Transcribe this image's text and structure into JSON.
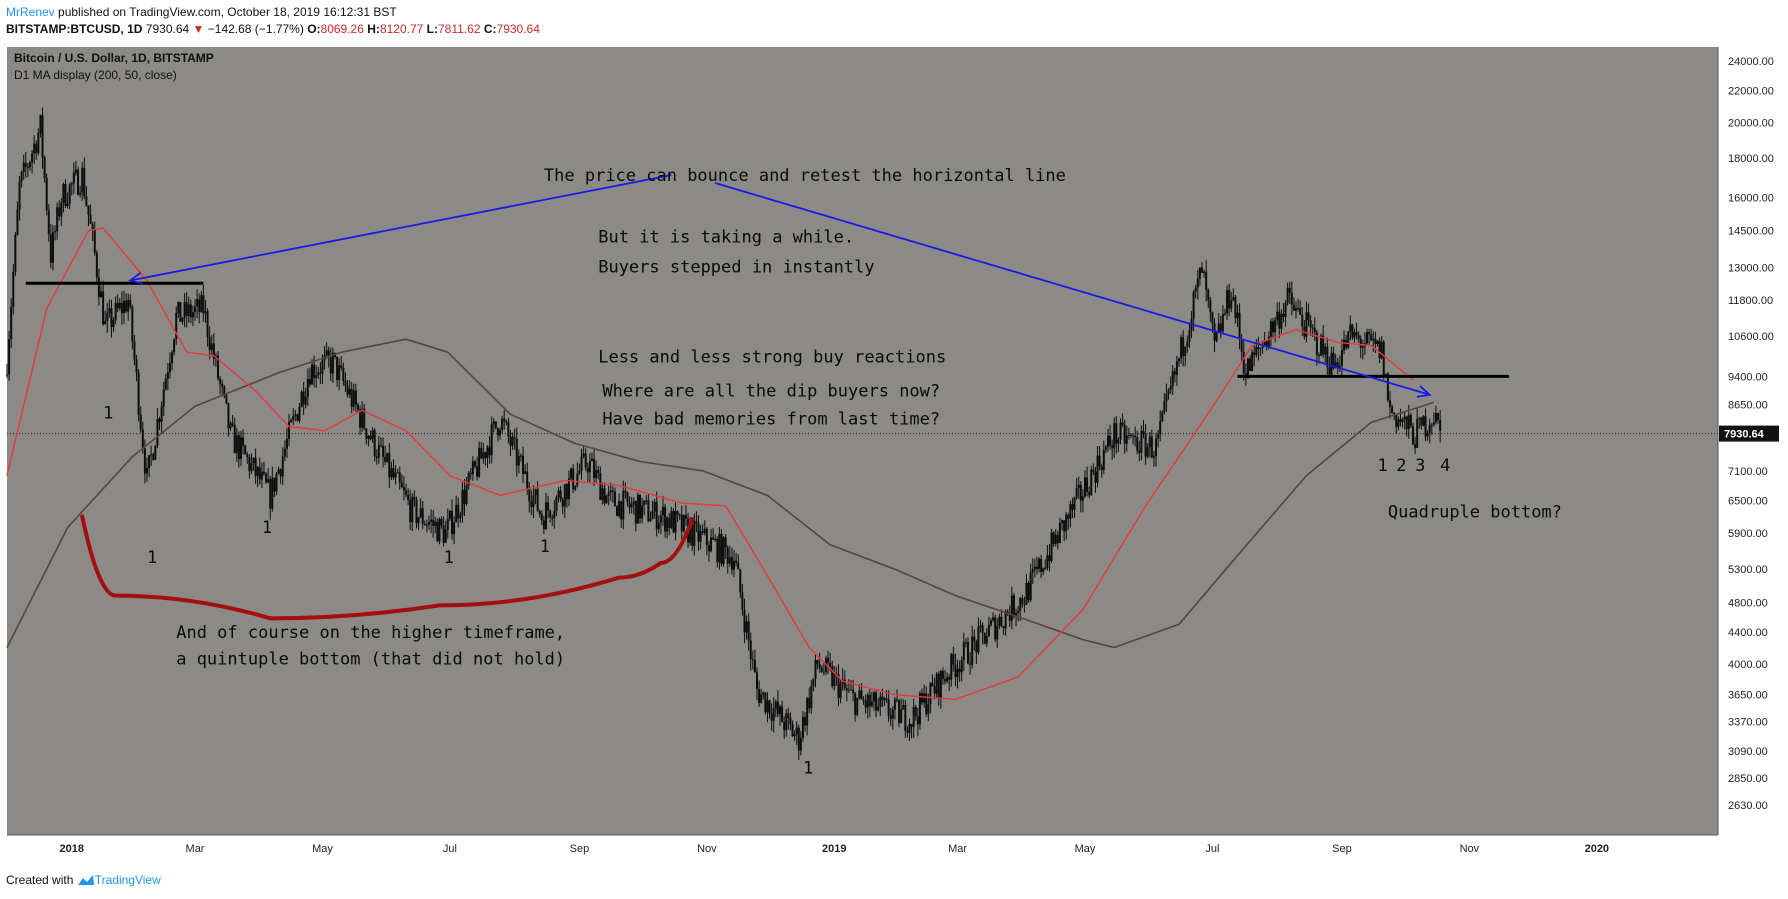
{
  "header": {
    "author": "MrRenev",
    "published": "published on TradingView.com, October 18, 2019 16:12:31 BST",
    "symbol": "BITSTAMP:BTCUSD, 1D",
    "last": "7930.64",
    "change_arrow": "▼",
    "change": "−142.68 (−1.77%)",
    "o_label": "O:",
    "o": "8069.26",
    "h_label": "H:",
    "h": "8120.77",
    "l_label": "L:",
    "l": "7811.62",
    "c_label": "C:",
    "c": "7930.64"
  },
  "legend": {
    "title": "Bitcoin / U.S. Dollar, 1D, BITSTAMP",
    "indicator": "D1 MA display (200, 50, close)"
  },
  "footer": {
    "created_with": "Created with",
    "brand": "TradingView"
  },
  "colors": {
    "plot_bg": "#8c8a87",
    "ma50": "#e8383a",
    "ma200": "#5a4636",
    "candles": "#0d0d0d",
    "blue_lines": "#1a1ae6",
    "curve": "#a40f0f",
    "price_tag": "#111111"
  },
  "chart_data": {
    "type": "line",
    "title": "Bitcoin / U.S. Dollar, 1D, BITSTAMP",
    "scale": "log",
    "ylim": [
      2630,
      24000
    ],
    "y_ticks": [
      "24000.00",
      "22000.00",
      "20000.00",
      "18000.00",
      "16000.00",
      "14500.00",
      "13000.00",
      "11800.00",
      "10600.00",
      "9400.00",
      "8650.00",
      "7930.64",
      "7100.00",
      "6500.00",
      "5900.00",
      "5300.00",
      "4800.00",
      "4400.00",
      "4000.00",
      "3650.00",
      "3370.00",
      "3090.00",
      "2850.00",
      "2630.00"
    ],
    "x_ticks": [
      "2018",
      "Mar",
      "May",
      "Jul",
      "Sep",
      "Nov",
      "2019",
      "Mar",
      "May",
      "Jul",
      "Sep",
      "Nov",
      "2020"
    ],
    "xlim": [
      "2017-12-01",
      "2020-02-28"
    ],
    "current_price": "7930.64",
    "series": [
      {
        "name": "BTCUSD",
        "points": [
          [
            "2017-12-01",
            9900
          ],
          [
            "2017-12-07",
            16500
          ],
          [
            "2017-12-17",
            19700
          ],
          [
            "2017-12-22",
            13500
          ],
          [
            "2017-12-27",
            16000
          ],
          [
            "2018-01-06",
            17100
          ],
          [
            "2018-01-12",
            13500
          ],
          [
            "2018-01-17",
            10900
          ],
          [
            "2018-01-28",
            11800
          ],
          [
            "2018-02-06",
            6900
          ],
          [
            "2018-02-20",
            11200
          ],
          [
            "2018-03-05",
            11500
          ],
          [
            "2018-03-18",
            7900
          ],
          [
            "2018-04-06",
            6600
          ],
          [
            "2018-04-25",
            9600
          ],
          [
            "2018-05-06",
            9800
          ],
          [
            "2018-05-29",
            7400
          ],
          [
            "2018-06-13",
            6300
          ],
          [
            "2018-06-29",
            5900
          ],
          [
            "2018-07-25",
            8300
          ],
          [
            "2018-08-14",
            6200
          ],
          [
            "2018-09-05",
            7300
          ],
          [
            "2018-09-15",
            6500
          ],
          [
            "2018-10-11",
            6200
          ],
          [
            "2018-11-14",
            5500
          ],
          [
            "2018-11-25",
            3700
          ],
          [
            "2018-12-15",
            3200
          ],
          [
            "2018-12-24",
            4000
          ],
          [
            "2019-01-10",
            3600
          ],
          [
            "2019-02-07",
            3400
          ],
          [
            "2019-02-24",
            3900
          ],
          [
            "2019-04-02",
            4900
          ],
          [
            "2019-05-15",
            7900
          ],
          [
            "2019-06-04",
            7600
          ],
          [
            "2019-06-26",
            12900
          ],
          [
            "2019-07-02",
            10200
          ],
          [
            "2019-07-10",
            12200
          ],
          [
            "2019-07-17",
            9500
          ],
          [
            "2019-08-06",
            11800
          ],
          [
            "2019-08-28",
            9700
          ],
          [
            "2019-09-05",
            10600
          ],
          [
            "2019-09-20",
            10100
          ],
          [
            "2019-09-24",
            8500
          ],
          [
            "2019-10-06",
            7900
          ],
          [
            "2019-10-15",
            8400
          ],
          [
            "2019-10-18",
            7930
          ]
        ]
      },
      {
        "name": "MA 50",
        "points": [
          [
            "2017-12-01",
            7000
          ],
          [
            "2017-12-20",
            11500
          ],
          [
            "2018-01-09",
            14500
          ],
          [
            "2018-01-16",
            14600
          ],
          [
            "2018-02-06",
            12500
          ],
          [
            "2018-02-25",
            10100
          ],
          [
            "2018-03-10",
            10000
          ],
          [
            "2018-03-30",
            9000
          ],
          [
            "2018-04-15",
            8100
          ],
          [
            "2018-05-02",
            8000
          ],
          [
            "2018-05-20",
            8500
          ],
          [
            "2018-06-10",
            8000
          ],
          [
            "2018-07-01",
            7000
          ],
          [
            "2018-07-25",
            6600
          ],
          [
            "2018-08-25",
            6900
          ],
          [
            "2018-09-20",
            6800
          ],
          [
            "2018-10-20",
            6450
          ],
          [
            "2018-11-10",
            6400
          ],
          [
            "2018-11-30",
            5200
          ],
          [
            "2018-12-20",
            4200
          ],
          [
            "2019-01-05",
            3800
          ],
          [
            "2019-01-30",
            3650
          ],
          [
            "2019-02-28",
            3600
          ],
          [
            "2019-03-30",
            3850
          ],
          [
            "2019-04-30",
            4700
          ],
          [
            "2019-05-30",
            6400
          ],
          [
            "2019-06-30",
            8500
          ],
          [
            "2019-07-20",
            10300
          ],
          [
            "2019-08-10",
            10800
          ],
          [
            "2019-08-30",
            10400
          ],
          [
            "2019-09-15",
            10300
          ],
          [
            "2019-10-05",
            9300
          ]
        ]
      },
      {
        "name": "MA 200",
        "points": [
          [
            "2017-12-01",
            4200
          ],
          [
            "2017-12-30",
            6000
          ],
          [
            "2018-01-30",
            7400
          ],
          [
            "2018-03-01",
            8600
          ],
          [
            "2018-04-10",
            9500
          ],
          [
            "2018-05-10",
            10100
          ],
          [
            "2018-06-10",
            10500
          ],
          [
            "2018-06-30",
            10100
          ],
          [
            "2018-07-30",
            8400
          ],
          [
            "2018-08-30",
            7700
          ],
          [
            "2018-09-30",
            7300
          ],
          [
            "2018-10-30",
            7100
          ],
          [
            "2018-11-30",
            6600
          ],
          [
            "2018-12-30",
            5700
          ],
          [
            "2019-01-30",
            5300
          ],
          [
            "2019-02-28",
            4900
          ],
          [
            "2019-03-30",
            4600
          ],
          [
            "2019-04-30",
            4300
          ],
          [
            "2019-05-15",
            4200
          ],
          [
            "2019-06-15",
            4500
          ],
          [
            "2019-07-15",
            5600
          ],
          [
            "2019-08-15",
            7000
          ],
          [
            "2019-09-15",
            8200
          ],
          [
            "2019-10-15",
            8700
          ]
        ]
      }
    ],
    "annotations": [
      {
        "text": "The price can bounce and retest the horizontal line",
        "x": "2018-08-15",
        "y": 16800
      },
      {
        "text": "But it is taking a while.",
        "x": "2018-09-10",
        "y": 14000
      },
      {
        "text": "Buyers stepped in instantly",
        "x": "2018-09-10",
        "y": 12800
      },
      {
        "text": "Less and less strong buy reactions",
        "x": "2018-09-10",
        "y": 9800
      },
      {
        "text": "Where are all the dip buyers now?",
        "x": "2018-09-12",
        "y": 8850
      },
      {
        "text": "Have bad memories from last time?",
        "x": "2018-09-12",
        "y": 8150
      },
      {
        "text": "And of course on the higher timeframe,",
        "x": "2018-02-20",
        "y": 4320
      },
      {
        "text": "a quintuple bottom (that did not hold)",
        "x": "2018-02-20",
        "y": 3990
      },
      {
        "text": "Quadruple bottom?",
        "x": "2019-09-23",
        "y": 6180
      },
      {
        "text": "1",
        "x": "2018-01-16",
        "y": 8300
      },
      {
        "text": "1",
        "x": "2018-02-06",
        "y": 5400
      },
      {
        "text": "1",
        "x": "2018-04-02",
        "y": 5900
      },
      {
        "text": "1",
        "x": "2018-06-28",
        "y": 5400
      },
      {
        "text": "1",
        "x": "2018-08-13",
        "y": 5580
      },
      {
        "text": "1",
        "x": "2018-12-17",
        "y": 2890
      },
      {
        "text": "1",
        "x": "2019-09-18",
        "y": 7100
      },
      {
        "text": "2",
        "x": "2019-09-27",
        "y": 7100
      },
      {
        "text": "3",
        "x": "2019-10-06",
        "y": 7100
      },
      {
        "text": "4",
        "x": "2019-10-18",
        "y": 7100
      }
    ],
    "horizontal_lines": [
      {
        "x1": "2017-12-10",
        "x2": "2018-03-05",
        "y": 12400
      },
      {
        "x1": "2019-07-13",
        "x2": "2019-11-20",
        "y": 9400
      }
    ],
    "arrows": [
      {
        "x1": "2018-10-15",
        "y1": 17100,
        "x2": "2018-01-29",
        "y2": 12500
      },
      {
        "x1": "2018-11-05",
        "y1": 16700,
        "x2": "2019-10-13",
        "y2": 8900
      }
    ],
    "curve": [
      [
        "2018-01-06",
        6200
      ],
      [
        "2018-01-22",
        4900
      ],
      [
        "2018-04-06",
        4580
      ],
      [
        "2018-06-26",
        4760
      ],
      [
        "2018-09-20",
        5170
      ],
      [
        "2018-10-10",
        5400
      ],
      [
        "2018-10-25",
        6150
      ]
    ]
  }
}
